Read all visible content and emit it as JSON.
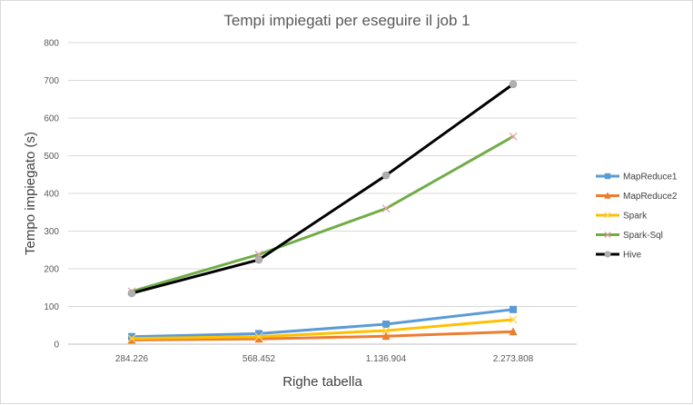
{
  "chart_data": {
    "type": "line",
    "title": "Tempi impiegati per eseguire il job 1",
    "xlabel": "Righe tabella",
    "ylabel": "Tempo impiegato (s)",
    "categories": [
      "284.226",
      "568.452",
      "1.136.904",
      "2.273.808"
    ],
    "ylim": [
      0,
      800
    ],
    "yticks": [
      0,
      100,
      200,
      300,
      400,
      500,
      600,
      700,
      800
    ],
    "grid": true,
    "legend_position": "right",
    "series": [
      {
        "name": "MapReduce1",
        "values": [
          20,
          28,
          53,
          92
        ],
        "color": "#5b9bd5",
        "marker": "square"
      },
      {
        "name": "MapReduce2",
        "values": [
          11,
          14,
          21,
          33
        ],
        "color": "#ed7d31",
        "marker": "triangle"
      },
      {
        "name": "Spark",
        "values": [
          15,
          20,
          36,
          65
        ],
        "color": "#ffc000",
        "marker": "x"
      },
      {
        "name": "Spark-Sql",
        "values": [
          140,
          238,
          360,
          551
        ],
        "color": "#70ad47",
        "marker": "x"
      },
      {
        "name": "Hive",
        "values": [
          135,
          224,
          448,
          690
        ],
        "color": "#000000",
        "marker": "circle"
      }
    ]
  }
}
